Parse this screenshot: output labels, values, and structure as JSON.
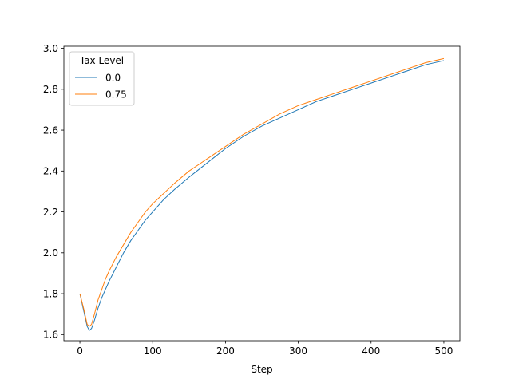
{
  "chart_data": {
    "type": "line",
    "title": "",
    "xlabel": "Step",
    "ylabel": "",
    "xlim": [
      -22,
      522
    ],
    "ylim": [
      1.57,
      3.01
    ],
    "xticks": [
      0,
      100,
      200,
      300,
      400,
      500
    ],
    "yticks": [
      1.6,
      1.8,
      2.0,
      2.2,
      2.4,
      2.6,
      2.8,
      3.0
    ],
    "xtick_labels": [
      "0",
      "100",
      "200",
      "300",
      "400",
      "500"
    ],
    "ytick_labels": [
      "1.6",
      "1.8",
      "2.0",
      "2.2",
      "2.4",
      "2.6",
      "2.8",
      "3.0"
    ],
    "grid": false,
    "legend": {
      "title": "Tax Level",
      "placement": "top-left"
    },
    "series": [
      {
        "name": "0.0",
        "color": "#1f77b4",
        "x": [
          0,
          5,
          10,
          13,
          16,
          20,
          25,
          30,
          35,
          40,
          50,
          60,
          70,
          80,
          90,
          100,
          115,
          130,
          150,
          175,
          200,
          225,
          250,
          275,
          300,
          325,
          350,
          375,
          400,
          425,
          450,
          475,
          500
        ],
        "y": [
          1.8,
          1.72,
          1.64,
          1.62,
          1.63,
          1.67,
          1.73,
          1.78,
          1.82,
          1.86,
          1.93,
          2.0,
          2.06,
          2.11,
          2.16,
          2.2,
          2.26,
          2.31,
          2.37,
          2.44,
          2.51,
          2.57,
          2.62,
          2.66,
          2.7,
          2.74,
          2.77,
          2.8,
          2.83,
          2.86,
          2.89,
          2.92,
          2.94
        ]
      },
      {
        "name": "0.75",
        "color": "#ff7f0e",
        "x": [
          0,
          5,
          10,
          13,
          16,
          20,
          25,
          30,
          35,
          40,
          50,
          60,
          70,
          80,
          90,
          100,
          115,
          130,
          150,
          175,
          200,
          225,
          250,
          275,
          300,
          325,
          350,
          375,
          400,
          425,
          450,
          475,
          500
        ],
        "y": [
          1.8,
          1.73,
          1.65,
          1.64,
          1.65,
          1.7,
          1.77,
          1.82,
          1.87,
          1.91,
          1.98,
          2.04,
          2.1,
          2.15,
          2.2,
          2.24,
          2.29,
          2.34,
          2.4,
          2.46,
          2.52,
          2.58,
          2.63,
          2.68,
          2.72,
          2.75,
          2.78,
          2.81,
          2.84,
          2.87,
          2.9,
          2.93,
          2.95
        ]
      }
    ]
  }
}
